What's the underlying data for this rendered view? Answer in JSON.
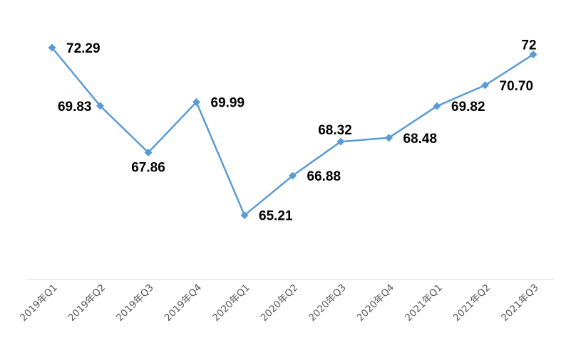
{
  "chart_data": {
    "type": "line",
    "title": "",
    "xlabel": "",
    "ylabel": "",
    "categories": [
      "2019年Q1",
      "2019年Q2",
      "2019年Q3",
      "2019年Q4",
      "2020年Q1",
      "2020年Q2",
      "2020年Q3",
      "2020年Q4",
      "2021年Q1",
      "2021年Q2",
      "2021年Q3"
    ],
    "series": [
      {
        "values": [
          72.29,
          69.83,
          67.86,
          69.99,
          65.21,
          66.88,
          68.32,
          68.48,
          69.82,
          70.7,
          72
        ],
        "data_labels": [
          "72.29",
          "69.83",
          "67.86",
          "69.99",
          "65.21",
          "66.88",
          "68.32",
          "68.48",
          "69.82",
          "70.70",
          "72"
        ],
        "color": "#5b9bd5",
        "marker": "diamond"
      }
    ],
    "ylim": [
      62.5,
      73.4
    ],
    "grid": false,
    "legend": "none",
    "y_axis_visible": false,
    "axis_line_color": "#d9d9d9"
  }
}
